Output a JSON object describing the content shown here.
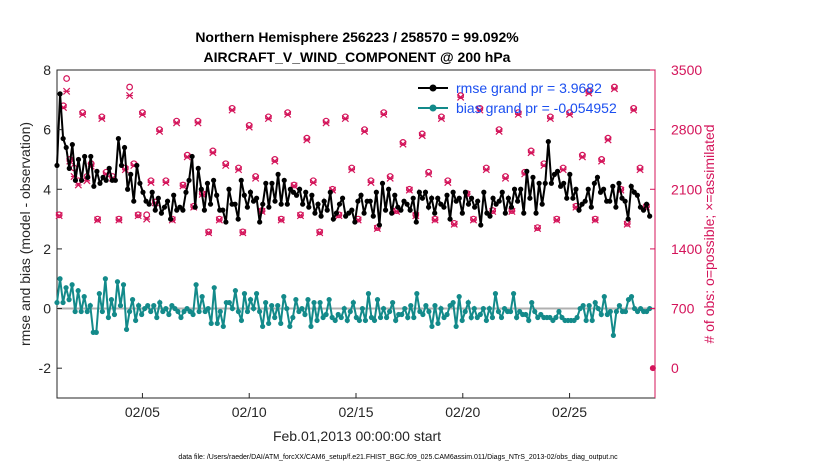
{
  "chart_data": {
    "type": "line",
    "title_line1": "Northern Hemisphere 256223 / 258570 = 99.092%",
    "title_line2": "AIRCRAFT_V_WIND_COMPONENT @ 200 hPa",
    "xlabel": "Feb.01,2013 00:00:00 start",
    "ylabel_left": "rmse and bias (model - observation)",
    "ylabel_right": "# of obs: o=possible; ×=assimilated",
    "footnote": "data file: /Users/raeder/DAI/ATM_forcXX/CAM6_setup/f.e21.FHIST_BGC.f09_025.CAM6assim.011/Diags_NTrS_2013-02/obs_diag_output.nc",
    "x_ticks": [
      "02/05",
      "02/10",
      "02/15",
      "02/20",
      "02/25"
    ],
    "x_tick_days": [
      5,
      10,
      15,
      20,
      25
    ],
    "xlim": [
      1,
      29
    ],
    "ylim_left": [
      -3,
      8
    ],
    "y_ticks_left": [
      "-2",
      "0",
      "2",
      "4",
      "6",
      "8"
    ],
    "y_tick_values_left": [
      -2,
      0,
      2,
      4,
      6,
      8
    ],
    "ylim_right": [
      -350,
      3500
    ],
    "y_ticks_right": [
      "0",
      "700",
      "1400",
      "2100",
      "2800",
      "3500"
    ],
    "y_tick_values_right": [
      0,
      700,
      1400,
      2100,
      2800,
      3500
    ],
    "legend": {
      "position": "top-right",
      "entries": [
        "rmse grand pr = 3.9682",
        "bias grand pr = -0.054952"
      ]
    },
    "colors": {
      "rmse": "#000000",
      "bias": "#138a8a",
      "obs": "#d4145a",
      "zero_line": "#b0b0b0",
      "legend_text": "#1b4ff0"
    },
    "series": [
      {
        "name": "rmse grand pr = 3.9682",
        "values": [
          4.8,
          7.2,
          5.7,
          5.4,
          4.7,
          5.5,
          4.3,
          5.0,
          4.3,
          5.1,
          4.4,
          5.1,
          4.1,
          4.6,
          4.2,
          4.4,
          4.3,
          4.7,
          4.3,
          4.3,
          5.7,
          4.8,
          5.4,
          4.0,
          4.5,
          3.6,
          4.8,
          4.2,
          3.9,
          3.6,
          3.5,
          3.9,
          3.3,
          3.7,
          3.2,
          3.4,
          3.6,
          3.0,
          3.8,
          3.3,
          3.4,
          3.3,
          3.9,
          4.3,
          5.1,
          3.4,
          4.7,
          4.0,
          3.3,
          4.2,
          3.5,
          4.3,
          3.8,
          3.3,
          3.3,
          2.9,
          4.0,
          3.5,
          3.5,
          3.0,
          4.3,
          3.8,
          3.4,
          3.9,
          3.6,
          3.7,
          2.9,
          3.5,
          4.2,
          3.4,
          4.2,
          3.6,
          4.5,
          3.5,
          4.3,
          3.5,
          4.0,
          3.9,
          3.8,
          4.0,
          3.5,
          3.9,
          3.4,
          3.8,
          3.2,
          3.5,
          3.1,
          3.6,
          3.3,
          3.9,
          3.0,
          3.2,
          3.5,
          3.7,
          3.1,
          3.2,
          3.3,
          2.9,
          3.6,
          3.8,
          3.2,
          3.6,
          3.6,
          3.1,
          3.9,
          2.8,
          4.2,
          3.3,
          4.0,
          3.2,
          3.8,
          3.4,
          3.3,
          3.6,
          3.5,
          3.3,
          3.7,
          2.9,
          3.9,
          3.7,
          3.9,
          3.4,
          3.7,
          3.2,
          3.7,
          3.5,
          3.4,
          3.8,
          3.0,
          3.9,
          3.6,
          3.7,
          3.2,
          3.9,
          3.5,
          3.7,
          3.4,
          3.6,
          2.8,
          3.9,
          3.2,
          3.1,
          3.7,
          3.5,
          3.6,
          3.9,
          3.2,
          3.7,
          3.4,
          4.0,
          3.6,
          4.0,
          3.2,
          4.6,
          3.7,
          4.4,
          3.2,
          4.2,
          3.5,
          4.2,
          5.6,
          4.2,
          4.5,
          4.6,
          4.1,
          4.2,
          3.7,
          4.5,
          3.7,
          4.0,
          3.3,
          3.5,
          3.6,
          4.0,
          3.4,
          4.2,
          4.4,
          3.9,
          4.0,
          3.6,
          3.6,
          4.1,
          3.4,
          4.2,
          3.7,
          3.6,
          3.0,
          4.1,
          3.9,
          3.8,
          3.4,
          3.3,
          3.5,
          3.1
        ]
      },
      {
        "name": "bias grand pr = -0.054952",
        "values": [
          0.2,
          1.0,
          0.2,
          0.7,
          0.3,
          0.8,
          -0.1,
          0.6,
          -0.1,
          0.4,
          -0.1,
          0.1,
          -0.8,
          -0.8,
          0.5,
          -0.1,
          1.0,
          -0.3,
          0.3,
          -0.2,
          0.9,
          0.1,
          0.8,
          -0.7,
          -0.1,
          0.3,
          -0.4,
          0.1,
          -0.2,
          0.0,
          0.1,
          -0.1,
          0.1,
          -0.3,
          0.2,
          -0.1,
          0.0,
          -0.2,
          0.1,
          0.0,
          -0.1,
          -0.3,
          -0.1,
          0.0,
          -0.1,
          -0.2,
          0.8,
          -0.1,
          0.4,
          -0.1,
          0.0,
          -0.5,
          0.7,
          -0.5,
          -0.1,
          -0.6,
          0.2,
          0.2,
          0.0,
          0.6,
          -0.1,
          -0.4,
          0.5,
          -0.1,
          0.3,
          0.0,
          0.5,
          -0.1,
          -0.6,
          0.2,
          -0.5,
          0.1,
          -0.3,
          0.1,
          -0.5,
          0.4,
          0.0,
          -0.6,
          -0.3,
          0.3,
          -0.1,
          0.0,
          -0.2,
          0.3,
          -0.6,
          0.2,
          -0.4,
          0.2,
          -0.3,
          -0.2,
          0.3,
          -0.3,
          -0.4,
          -0.2,
          -0.3,
          0.0,
          -0.4,
          -0.1,
          0.2,
          -0.3,
          -0.4,
          0.0,
          -0.4,
          0.5,
          -0.3,
          -0.4,
          0.3,
          -0.3,
          0.0,
          -0.3,
          -0.1,
          0.2,
          -0.4,
          -0.2,
          -0.2,
          0.0,
          -0.3,
          0.1,
          -0.3,
          0.5,
          -0.1,
          -0.2,
          0.1,
          -0.1,
          -0.6,
          0.1,
          -0.5,
          0.0,
          -0.3,
          -0.2,
          0.1,
          0.2,
          -0.6,
          0.4,
          -0.4,
          -0.1,
          0.2,
          -0.3,
          0.0,
          -0.3,
          -0.2,
          0.0,
          -0.4,
          0.0,
          -0.3,
          0.5,
          -0.1,
          -0.3,
          0.0,
          -0.1,
          -0.1,
          0.5,
          -0.3,
          -0.1,
          -0.2,
          -0.2,
          -0.4,
          0.2,
          -0.1,
          -0.3,
          -0.2,
          -0.3,
          -0.3,
          -0.3,
          -0.4,
          -0.3,
          -0.1,
          -0.3,
          -0.4,
          -0.4,
          -0.4,
          -0.4,
          -0.3,
          0.0,
          0.1,
          -0.4,
          0.1,
          -0.4,
          0.2,
          0.0,
          -0.2,
          0.4,
          -0.2,
          -0.1,
          -0.9,
          -0.1,
          0.1,
          -0.1,
          -0.1,
          0.3,
          0.4,
          0.0,
          -0.1,
          0.0,
          -0.1,
          -0.1,
          0.0
        ]
      }
    ],
    "obs_possible": [
      {
        "x": 1.1,
        "y": 1800
      },
      {
        "x": 1.3,
        "y": 3080
      },
      {
        "x": 1.45,
        "y": 3400
      },
      {
        "x": 1.6,
        "y": 2450
      },
      {
        "x": 1.8,
        "y": 2350
      },
      {
        "x": 2.0,
        "y": 2200
      },
      {
        "x": 2.2,
        "y": 3000
      },
      {
        "x": 2.4,
        "y": 2250
      },
      {
        "x": 2.6,
        "y": 2400
      },
      {
        "x": 2.9,
        "y": 1750
      },
      {
        "x": 3.1,
        "y": 2950
      },
      {
        "x": 3.3,
        "y": 2300
      },
      {
        "x": 3.6,
        "y": 2250
      },
      {
        "x": 3.9,
        "y": 1750
      },
      {
        "x": 4.2,
        "y": 2350
      },
      {
        "x": 4.4,
        "y": 3300
      },
      {
        "x": 4.6,
        "y": 2400
      },
      {
        "x": 4.8,
        "y": 1800
      },
      {
        "x": 5.0,
        "y": 3000
      },
      {
        "x": 5.2,
        "y": 1800
      },
      {
        "x": 5.4,
        "y": 2200
      },
      {
        "x": 5.6,
        "y": 1950
      },
      {
        "x": 5.8,
        "y": 2800
      },
      {
        "x": 6.1,
        "y": 2200
      },
      {
        "x": 6.4,
        "y": 1750
      },
      {
        "x": 6.6,
        "y": 2900
      },
      {
        "x": 6.9,
        "y": 2150
      },
      {
        "x": 7.1,
        "y": 2500
      },
      {
        "x": 7.4,
        "y": 1900
      },
      {
        "x": 7.6,
        "y": 2900
      },
      {
        "x": 7.8,
        "y": 2050
      },
      {
        "x": 8.1,
        "y": 1600
      },
      {
        "x": 8.3,
        "y": 2550
      },
      {
        "x": 8.6,
        "y": 1750
      },
      {
        "x": 8.9,
        "y": 2400
      },
      {
        "x": 9.2,
        "y": 3050
      },
      {
        "x": 9.5,
        "y": 2350
      },
      {
        "x": 9.7,
        "y": 1600
      },
      {
        "x": 10.0,
        "y": 2850
      },
      {
        "x": 10.3,
        "y": 2250
      },
      {
        "x": 10.6,
        "y": 1850
      },
      {
        "x": 10.9,
        "y": 2950
      },
      {
        "x": 11.2,
        "y": 2450
      },
      {
        "x": 11.5,
        "y": 1750
      },
      {
        "x": 11.8,
        "y": 3000
      },
      {
        "x": 12.1,
        "y": 2150
      },
      {
        "x": 12.4,
        "y": 1800
      },
      {
        "x": 12.7,
        "y": 2700
      },
      {
        "x": 13.0,
        "y": 2200
      },
      {
        "x": 13.3,
        "y": 1600
      },
      {
        "x": 13.6,
        "y": 2900
      },
      {
        "x": 13.9,
        "y": 2100
      },
      {
        "x": 14.2,
        "y": 1800
      },
      {
        "x": 14.5,
        "y": 2950
      },
      {
        "x": 14.8,
        "y": 2350
      },
      {
        "x": 15.1,
        "y": 1750
      },
      {
        "x": 15.4,
        "y": 2800
      },
      {
        "x": 15.7,
        "y": 2200
      },
      {
        "x": 16.0,
        "y": 1650
      },
      {
        "x": 16.3,
        "y": 3000
      },
      {
        "x": 16.6,
        "y": 2250
      },
      {
        "x": 16.9,
        "y": 1850
      },
      {
        "x": 17.2,
        "y": 2650
      },
      {
        "x": 17.5,
        "y": 2100
      },
      {
        "x": 17.8,
        "y": 1800
      },
      {
        "x": 18.1,
        "y": 2750
      },
      {
        "x": 18.4,
        "y": 2300
      },
      {
        "x": 18.7,
        "y": 1750
      },
      {
        "x": 19.0,
        "y": 2950
      },
      {
        "x": 19.3,
        "y": 2200
      },
      {
        "x": 19.6,
        "y": 1700
      },
      {
        "x": 19.9,
        "y": 3200
      },
      {
        "x": 20.2,
        "y": 2050
      },
      {
        "x": 20.5,
        "y": 1750
      },
      {
        "x": 20.8,
        "y": 3050
      },
      {
        "x": 21.1,
        "y": 2350
      },
      {
        "x": 21.4,
        "y": 1850
      },
      {
        "x": 21.7,
        "y": 2800
      },
      {
        "x": 22.0,
        "y": 2250
      },
      {
        "x": 22.3,
        "y": 1850
      },
      {
        "x": 22.6,
        "y": 3000
      },
      {
        "x": 22.9,
        "y": 2300
      },
      {
        "x": 23.2,
        "y": 2550
      },
      {
        "x": 23.5,
        "y": 1650
      },
      {
        "x": 23.8,
        "y": 2400
      },
      {
        "x": 24.1,
        "y": 2950
      },
      {
        "x": 24.4,
        "y": 1750
      },
      {
        "x": 24.7,
        "y": 2350
      },
      {
        "x": 25.0,
        "y": 3000
      },
      {
        "x": 25.3,
        "y": 1900
      },
      {
        "x": 25.6,
        "y": 2500
      },
      {
        "x": 25.9,
        "y": 3250
      },
      {
        "x": 26.2,
        "y": 1750
      },
      {
        "x": 26.5,
        "y": 2450
      },
      {
        "x": 26.8,
        "y": 2700
      },
      {
        "x": 27.1,
        "y": 3300
      },
      {
        "x": 27.4,
        "y": 2100
      },
      {
        "x": 27.7,
        "y": 1700
      },
      {
        "x": 28.0,
        "y": 3050
      },
      {
        "x": 28.3,
        "y": 2350
      },
      {
        "x": 28.6,
        "y": 1900
      }
    ],
    "obs_assimilated": [
      {
        "x": 1.1,
        "y": 1790
      },
      {
        "x": 1.3,
        "y": 3060
      },
      {
        "x": 1.45,
        "y": 3250
      },
      {
        "x": 1.6,
        "y": 2430
      },
      {
        "x": 1.8,
        "y": 2250
      },
      {
        "x": 2.0,
        "y": 2150
      },
      {
        "x": 2.2,
        "y": 2980
      },
      {
        "x": 2.4,
        "y": 2200
      },
      {
        "x": 2.6,
        "y": 2370
      },
      {
        "x": 2.9,
        "y": 1740
      },
      {
        "x": 3.1,
        "y": 2930
      },
      {
        "x": 3.3,
        "y": 2280
      },
      {
        "x": 3.6,
        "y": 2230
      },
      {
        "x": 3.9,
        "y": 1740
      },
      {
        "x": 4.2,
        "y": 2330
      },
      {
        "x": 4.4,
        "y": 3200
      },
      {
        "x": 4.6,
        "y": 2380
      },
      {
        "x": 4.8,
        "y": 1790
      },
      {
        "x": 5.0,
        "y": 2980
      },
      {
        "x": 5.2,
        "y": 1750
      },
      {
        "x": 5.4,
        "y": 2180
      },
      {
        "x": 5.6,
        "y": 1940
      },
      {
        "x": 5.8,
        "y": 2780
      },
      {
        "x": 6.1,
        "y": 2180
      },
      {
        "x": 6.4,
        "y": 1740
      },
      {
        "x": 6.6,
        "y": 2880
      },
      {
        "x": 6.9,
        "y": 2140
      },
      {
        "x": 7.1,
        "y": 2480
      },
      {
        "x": 7.4,
        "y": 1890
      },
      {
        "x": 7.6,
        "y": 2880
      },
      {
        "x": 7.8,
        "y": 2040
      },
      {
        "x": 8.1,
        "y": 1590
      },
      {
        "x": 8.3,
        "y": 2530
      },
      {
        "x": 8.6,
        "y": 1740
      },
      {
        "x": 8.9,
        "y": 2380
      },
      {
        "x": 9.2,
        "y": 3030
      },
      {
        "x": 9.5,
        "y": 2330
      },
      {
        "x": 9.7,
        "y": 1590
      },
      {
        "x": 10.0,
        "y": 2830
      },
      {
        "x": 10.3,
        "y": 2230
      },
      {
        "x": 10.6,
        "y": 1840
      },
      {
        "x": 10.9,
        "y": 2930
      },
      {
        "x": 11.2,
        "y": 2430
      },
      {
        "x": 11.5,
        "y": 1740
      },
      {
        "x": 11.8,
        "y": 2980
      },
      {
        "x": 12.1,
        "y": 2140
      },
      {
        "x": 12.4,
        "y": 1790
      },
      {
        "x": 12.7,
        "y": 2680
      },
      {
        "x": 13.0,
        "y": 2180
      },
      {
        "x": 13.3,
        "y": 1590
      },
      {
        "x": 13.6,
        "y": 2880
      },
      {
        "x": 13.9,
        "y": 2090
      },
      {
        "x": 14.2,
        "y": 1790
      },
      {
        "x": 14.5,
        "y": 2930
      },
      {
        "x": 14.8,
        "y": 2330
      },
      {
        "x": 15.1,
        "y": 1740
      },
      {
        "x": 15.4,
        "y": 2780
      },
      {
        "x": 15.7,
        "y": 2180
      },
      {
        "x": 16.0,
        "y": 1640
      },
      {
        "x": 16.3,
        "y": 2980
      },
      {
        "x": 16.6,
        "y": 2230
      },
      {
        "x": 16.9,
        "y": 1840
      },
      {
        "x": 17.2,
        "y": 2630
      },
      {
        "x": 17.5,
        "y": 2090
      },
      {
        "x": 17.8,
        "y": 1790
      },
      {
        "x": 18.1,
        "y": 2730
      },
      {
        "x": 18.4,
        "y": 2280
      },
      {
        "x": 18.7,
        "y": 1740
      },
      {
        "x": 19.0,
        "y": 2930
      },
      {
        "x": 19.3,
        "y": 2180
      },
      {
        "x": 19.6,
        "y": 1690
      },
      {
        "x": 19.9,
        "y": 3180
      },
      {
        "x": 20.2,
        "y": 2040
      },
      {
        "x": 20.5,
        "y": 1740
      },
      {
        "x": 20.8,
        "y": 3030
      },
      {
        "x": 21.1,
        "y": 2330
      },
      {
        "x": 21.4,
        "y": 1840
      },
      {
        "x": 21.7,
        "y": 2780
      },
      {
        "x": 22.0,
        "y": 2230
      },
      {
        "x": 22.3,
        "y": 1840
      },
      {
        "x": 22.6,
        "y": 2980
      },
      {
        "x": 22.9,
        "y": 2280
      },
      {
        "x": 23.2,
        "y": 2530
      },
      {
        "x": 23.5,
        "y": 1640
      },
      {
        "x": 23.8,
        "y": 2380
      },
      {
        "x": 24.1,
        "y": 2930
      },
      {
        "x": 24.4,
        "y": 1740
      },
      {
        "x": 24.7,
        "y": 2330
      },
      {
        "x": 25.0,
        "y": 2980
      },
      {
        "x": 25.3,
        "y": 1890
      },
      {
        "x": 25.6,
        "y": 2480
      },
      {
        "x": 25.9,
        "y": 3230
      },
      {
        "x": 26.2,
        "y": 1740
      },
      {
        "x": 26.5,
        "y": 2430
      },
      {
        "x": 26.8,
        "y": 2680
      },
      {
        "x": 27.1,
        "y": 3280
      },
      {
        "x": 27.4,
        "y": 2090
      },
      {
        "x": 27.7,
        "y": 1690
      },
      {
        "x": 28.0,
        "y": 3030
      },
      {
        "x": 28.3,
        "y": 2330
      },
      {
        "x": 28.6,
        "y": 1890
      }
    ],
    "obs_zero_marker": {
      "x": 28.9,
      "y": 0
    }
  }
}
